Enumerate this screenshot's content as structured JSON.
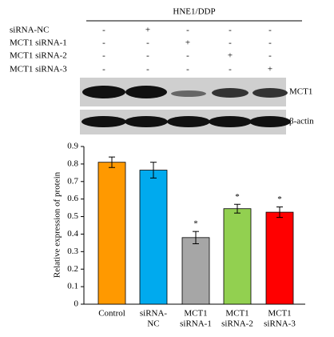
{
  "blot": {
    "group": "HNE1/DDP",
    "rows": [
      {
        "label": "siRNA-NC",
        "signs": [
          "-",
          "+",
          "-",
          "-",
          "-"
        ]
      },
      {
        "label": "MCT1 siRNA-1",
        "signs": [
          "-",
          "-",
          "+",
          "-",
          "-"
        ]
      },
      {
        "label": "MCT1 siRNA-2",
        "signs": [
          "-",
          "-",
          "-",
          "+",
          "-"
        ]
      },
      {
        "label": "MCT1 siRNA-3",
        "signs": [
          "-",
          "-",
          "-",
          "-",
          "+"
        ]
      }
    ],
    "bands": [
      "MCT1",
      "β-actin"
    ]
  },
  "chart_data": {
    "type": "bar",
    "ylabel": "Relative expression of protein",
    "categories": [
      [
        "Control"
      ],
      [
        "siRNA-",
        "NC"
      ],
      [
        "MCT1",
        "siRNA-1"
      ],
      [
        "MCT1",
        "siRNA-2"
      ],
      [
        "MCT1",
        "siRNA-3"
      ]
    ],
    "values": [
      0.81,
      0.765,
      0.38,
      0.545,
      0.525
    ],
    "errors": [
      0.03,
      0.045,
      0.035,
      0.025,
      0.03
    ],
    "markers": [
      null,
      null,
      "*",
      "*",
      "*"
    ],
    "colors": [
      "#ff9900",
      "#00aaee",
      "#a6a6a6",
      "#92d050",
      "#ff0000"
    ],
    "ylim": [
      0,
      0.9
    ],
    "yticks": [
      0,
      0.1,
      0.2,
      0.3,
      0.4,
      0.5,
      0.6,
      0.7,
      0.8,
      0.9
    ]
  }
}
